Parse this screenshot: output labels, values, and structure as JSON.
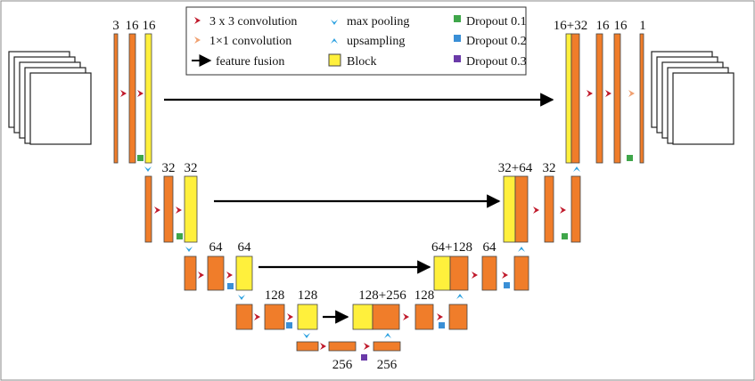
{
  "legend": {
    "conv3": "3 x 3 convolution",
    "conv1": "1×1 convolution",
    "fusion": "feature fusion",
    "maxpool": "max pooling",
    "upsample": "upsampling",
    "block": "Block",
    "drop1": "Dropout 0.1",
    "drop2": "Dropout 0.2",
    "drop3": "Dropout 0.3"
  },
  "labels": {
    "enc1_in": "3",
    "enc1_a": "16",
    "enc1_b": "16",
    "enc2_a": "32",
    "enc2_b": "32",
    "enc3_a": "64",
    "enc3_b": "64",
    "enc4_a": "128",
    "enc4_b": "128",
    "bottleneck_a": "256",
    "bottleneck_b": "256",
    "dec4_cat": "128+256",
    "dec4_conv": "128",
    "dec3_cat": "64+128",
    "dec3_conv": "64",
    "dec2_cat": "32+64",
    "dec2_conv": "32",
    "dec1_cat": "16+32",
    "dec1_a": "16",
    "dec1_b": "16",
    "dec1_out": "1"
  },
  "colors": {
    "orange": "#f07d2a",
    "yellow": "#fff03c",
    "red_arrow": "#c0182a",
    "light_arrow": "#f0a070",
    "blue_arrow": "#2aa0e0",
    "drop1": "#3fa64a",
    "drop2": "#3a8fd6",
    "drop3": "#6a3aa8",
    "stroke": "#444444"
  }
}
